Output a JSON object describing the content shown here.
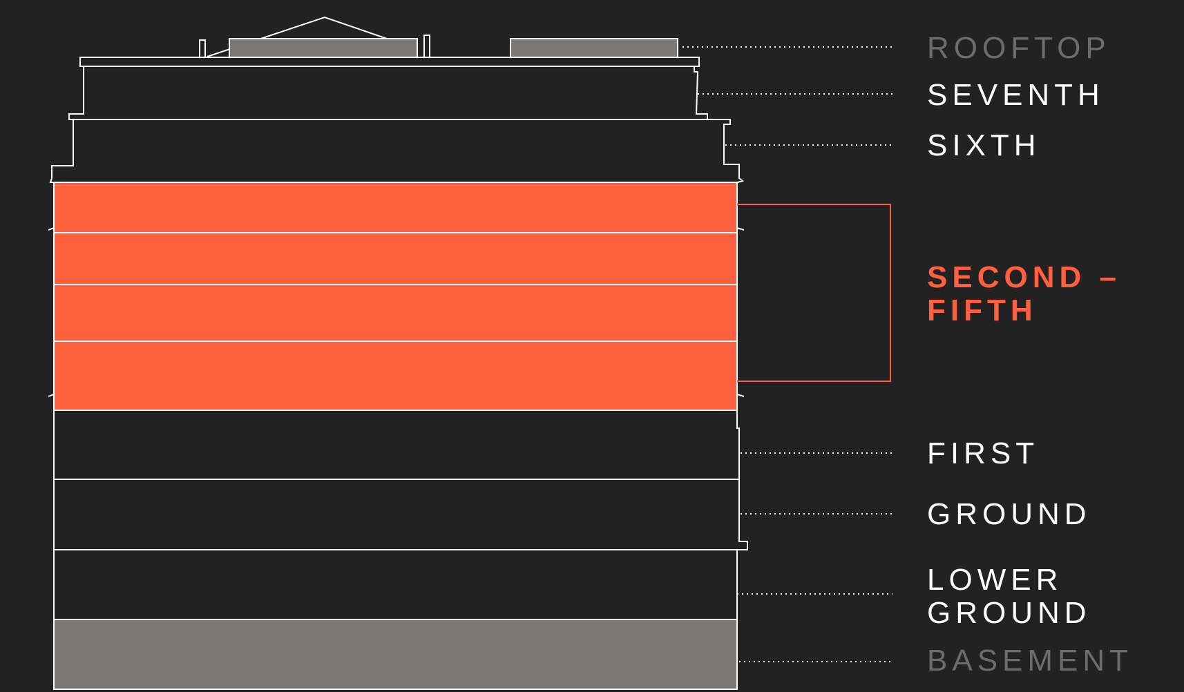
{
  "colors": {
    "background": "#232223",
    "outline": "#ffffff",
    "highlight": "#ff6140",
    "inactive_fill": "#7a7774",
    "inactive_text": "#6e6c6b"
  },
  "floors": {
    "rooftop": {
      "label": "ROOFTOP",
      "state": "unavailable"
    },
    "seventh": {
      "label": "SEVENTH",
      "state": "available"
    },
    "sixth": {
      "label": "SIXTH",
      "state": "available"
    },
    "second_fifth": {
      "label_line1": "SECOND –",
      "label_line2": "FIFTH",
      "state": "selected"
    },
    "first": {
      "label": "FIRST",
      "state": "available"
    },
    "ground": {
      "label": "GROUND",
      "state": "available"
    },
    "lower_ground": {
      "label_line1": "LOWER",
      "label_line2": "GROUND",
      "state": "available"
    },
    "basement": {
      "label": "BASEMENT",
      "state": "unavailable"
    }
  }
}
